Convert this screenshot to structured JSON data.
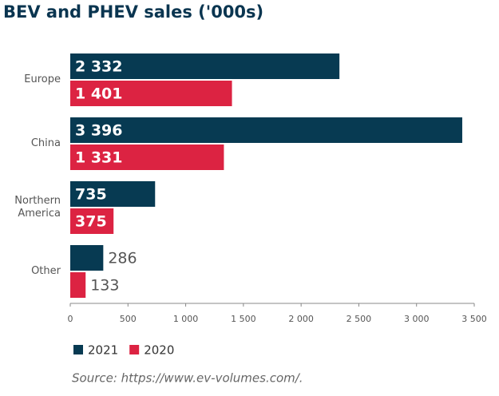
{
  "chart_data": {
    "type": "hbar",
    "title": "BEV and PHEV sales ('000s)",
    "categories": [
      "Europe",
      "China",
      "Northern America",
      "Other"
    ],
    "series": [
      {
        "name": "2021",
        "color": "#073a52",
        "values": [
          2332,
          3396,
          735,
          286
        ],
        "value_labels": [
          "2 332",
          "3 396",
          "735",
          "286"
        ]
      },
      {
        "name": "2020",
        "color": "#dc2342",
        "values": [
          1401,
          1331,
          375,
          133
        ],
        "value_labels": [
          "1 401",
          "1 331",
          "375",
          "133"
        ]
      }
    ],
    "xlim": [
      0,
      3500
    ],
    "xticks": [
      0,
      500,
      {
        "value": 1000,
        "label": "1 000"
      },
      {
        "value": 1500,
        "label": "1 500"
      },
      {
        "value": 2000,
        "label": "2 000"
      },
      {
        "value": 2500,
        "label": "2 500"
      },
      {
        "value": 3000,
        "label": "3 000"
      },
      {
        "value": 3500,
        "label": "3 500"
      }
    ],
    "source": "Source: https://www.ev-volumes.com/."
  }
}
